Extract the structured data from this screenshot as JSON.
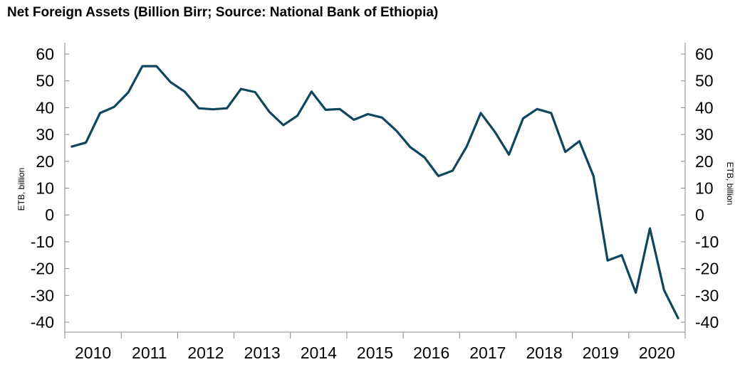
{
  "chart_data": {
    "type": "line",
    "title": "Net Foreign Assets (Billion Birr; Source: National Bank of Ethiopia)",
    "ylabel_left": "ETB, billion",
    "ylabel_right": "ETB, billion",
    "ylim": [
      -40,
      60
    ],
    "yticks": [
      60,
      50,
      40,
      30,
      20,
      10,
      0,
      -10,
      -20,
      -30,
      -40
    ],
    "ytick_labels": [
      "60",
      "50",
      "40",
      "30",
      "20",
      "10",
      "0",
      "-10",
      "-20",
      "-30",
      "-40"
    ],
    "xlim": [
      2009.625,
      2020.625
    ],
    "years": [
      "2010",
      "2011",
      "2012",
      "2013",
      "2014",
      "2015",
      "2016",
      "2017",
      "2018",
      "2019",
      "2020"
    ],
    "grid": false,
    "legend": "none",
    "line_color": "#0e4660",
    "series": [
      {
        "x": [
          2009.75,
          2010.0,
          2010.25,
          2010.5,
          2010.75,
          2011.0,
          2011.25,
          2011.5,
          2011.75,
          2012.0,
          2012.25,
          2012.5,
          2012.75,
          2013.0,
          2013.25,
          2013.5,
          2013.75,
          2014.0,
          2014.25,
          2014.5,
          2014.75,
          2015.0,
          2015.25,
          2015.5,
          2015.75,
          2016.0,
          2016.25,
          2016.5,
          2016.75,
          2017.0,
          2017.25,
          2017.5,
          2017.75,
          2018.0,
          2018.25,
          2018.5,
          2018.75,
          2019.0,
          2019.25,
          2019.5,
          2019.75,
          2020.0,
          2020.25,
          2020.5
        ],
        "values": [
          25.5,
          27,
          38,
          40.3,
          45.7,
          55.5,
          55.5,
          49.5,
          46,
          39.8,
          39.4,
          39.8,
          47,
          45.8,
          38.5,
          33.5,
          37,
          46,
          39.2,
          39.5,
          35.5,
          37.6,
          36.3,
          31.5,
          25.3,
          21.5,
          14.5,
          16.5,
          25.5,
          38,
          31,
          22.5,
          36,
          39.5,
          38,
          23.5,
          27.5,
          14.5,
          -17,
          -15,
          -29,
          -5,
          -28,
          -38.5
        ]
      }
    ]
  }
}
